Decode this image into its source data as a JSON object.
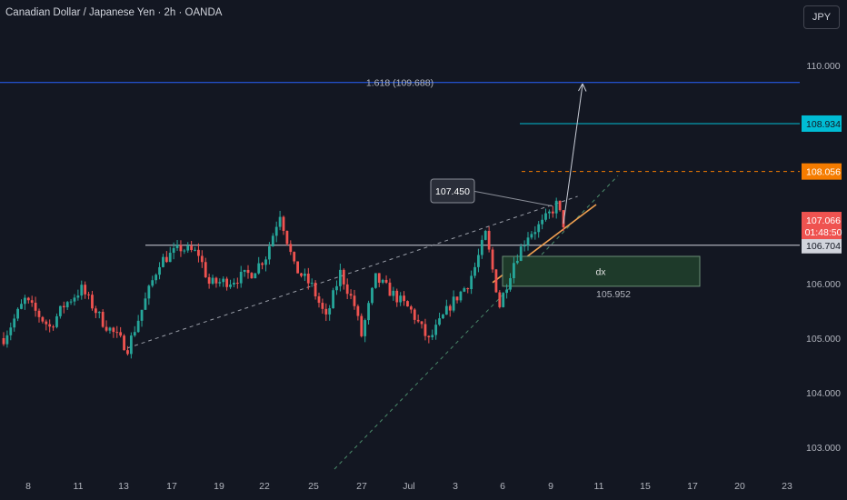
{
  "header": {
    "title": "Canadian Dollar / Japanese Yen · 2h · OANDA",
    "currency_button": "JPY"
  },
  "colors": {
    "background": "#131722",
    "candle_up": "#26a69a",
    "candle_down": "#ef5350",
    "fib_line": "#2962ff",
    "target_line": "#00bcd4",
    "orange_line": "#f57c00",
    "white_line": "#d1d4dc",
    "zone_fill": "#1e3a2a",
    "zone_border": "#6b8f75",
    "trend_orange": "#f0a050"
  },
  "chart_data": {
    "type": "candlestick",
    "y_axis": {
      "ticks": [
        "110.000",
        "106.000",
        "105.000",
        "104.000",
        "103.000"
      ],
      "range": [
        102.7,
        110.45
      ]
    },
    "x_axis": {
      "ticks": [
        "8",
        "11",
        "13",
        "17",
        "19",
        "22",
        "25",
        "27",
        "Jul",
        "3",
        "6",
        "9",
        "11",
        "15",
        "17",
        "20",
        "23"
      ]
    },
    "path": [
      {
        "t": 0,
        "p": 105.0
      },
      {
        "t": 6,
        "p": 105.7
      },
      {
        "t": 13,
        "p": 105.2
      },
      {
        "t": 17,
        "p": 105.6
      },
      {
        "t": 22,
        "p": 105.9
      },
      {
        "t": 28,
        "p": 105.3
      },
      {
        "t": 35,
        "p": 104.82
      },
      {
        "t": 44,
        "p": 106.4
      },
      {
        "t": 50,
        "p": 106.65
      },
      {
        "t": 55,
        "p": 106.55
      },
      {
        "t": 58,
        "p": 106.0
      },
      {
        "t": 64,
        "p": 106.05
      },
      {
        "t": 70,
        "p": 106.2
      },
      {
        "t": 74,
        "p": 106.5
      },
      {
        "t": 78,
        "p": 107.3
      },
      {
        "t": 82,
        "p": 106.3
      },
      {
        "t": 87,
        "p": 105.95
      },
      {
        "t": 91,
        "p": 105.35
      },
      {
        "t": 95,
        "p": 106.2
      },
      {
        "t": 99,
        "p": 105.6
      },
      {
        "t": 101,
        "p": 105.05
      },
      {
        "t": 105,
        "p": 106.1
      },
      {
        "t": 110,
        "p": 105.8
      },
      {
        "t": 115,
        "p": 105.5
      },
      {
        "t": 120,
        "p": 104.95
      },
      {
        "t": 126,
        "p": 105.6
      },
      {
        "t": 131,
        "p": 106.0
      },
      {
        "t": 133,
        "p": 106.3
      },
      {
        "t": 136,
        "p": 106.9
      },
      {
        "t": 140,
        "p": 105.6
      },
      {
        "t": 144,
        "p": 106.4
      },
      {
        "t": 148,
        "p": 106.9
      },
      {
        "t": 152,
        "p": 107.1
      },
      {
        "t": 156,
        "p": 107.45
      },
      {
        "t": 158,
        "p": 107.1
      }
    ],
    "series": [
      {
        "name": "1.618 (109.688)",
        "type": "hline",
        "value": 109.688
      },
      {
        "name": "108.934",
        "type": "hline",
        "value": 108.934
      },
      {
        "name": "108.056",
        "type": "hline",
        "value": 108.056
      },
      {
        "name": "106.704",
        "type": "hline",
        "value": 106.704
      }
    ],
    "last_price": "107.066",
    "countdown": "01:48:50",
    "line_labels": {
      "fib": "1.618 (109.688)",
      "cyan": "108.934",
      "orange": "108.056",
      "white": "106.704"
    },
    "callout": "107.450",
    "zone": {
      "label": "dx",
      "low_label": "105.952",
      "top": 106.5,
      "bottom": 105.952
    },
    "grid": false
  }
}
